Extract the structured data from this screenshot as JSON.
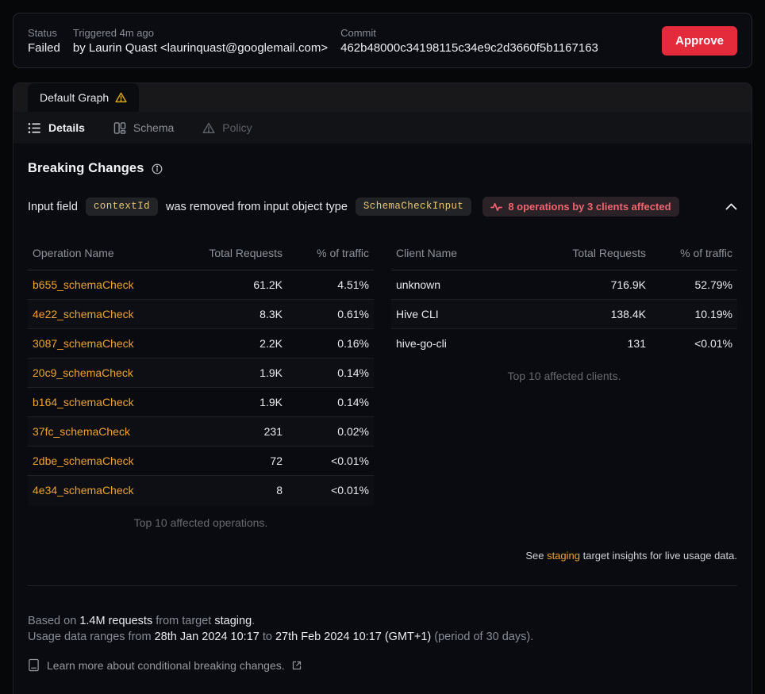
{
  "colors": {
    "accent_orange": "#efa32e",
    "code_yellow": "#e9c874",
    "badge_red": "#f2646f",
    "approve_red": "#e42b3c",
    "warning_yellow": "#d9a514"
  },
  "header": {
    "status_label": "Status",
    "status_value": "Failed",
    "triggered_label": "Triggered 4m ago",
    "triggered_value": "by Laurin Quast <laurinquast@googlemail.com>",
    "commit_label": "Commit",
    "commit_value": "462b48000c34198115c34e9c2d3660f5b1167163",
    "approve_label": "Approve"
  },
  "graph_tabs": {
    "active_label": "Default Graph"
  },
  "nav_tabs": [
    {
      "label": "Details"
    },
    {
      "label": "Schema"
    },
    {
      "label": "Policy"
    }
  ],
  "breaking": {
    "title": "Breaking Changes",
    "change": {
      "text_before": "Input field",
      "field_code": "contextId",
      "text_middle": "was removed from input object type",
      "type_code": "SchemaCheckInput",
      "badge_label": "8 operations by 3 clients affected"
    }
  },
  "operations_table": {
    "headers": [
      "Operation Name",
      "Total Requests",
      "% of traffic"
    ],
    "rows": [
      {
        "name": "b655_schemaCheck",
        "requests": "61.2K",
        "traffic": "4.51%"
      },
      {
        "name": "4e22_schemaCheck",
        "requests": "8.3K",
        "traffic": "0.61%"
      },
      {
        "name": "3087_schemaCheck",
        "requests": "2.2K",
        "traffic": "0.16%"
      },
      {
        "name": "20c9_schemaCheck",
        "requests": "1.9K",
        "traffic": "0.14%"
      },
      {
        "name": "b164_schemaCheck",
        "requests": "1.9K",
        "traffic": "0.14%"
      },
      {
        "name": "37fc_schemaCheck",
        "requests": "231",
        "traffic": "0.02%"
      },
      {
        "name": "2dbe_schemaCheck",
        "requests": "72",
        "traffic": "<0.01%"
      },
      {
        "name": "4e34_schemaCheck",
        "requests": "8",
        "traffic": "<0.01%"
      }
    ],
    "footnote": "Top 10 affected operations."
  },
  "clients_table": {
    "headers": [
      "Client Name",
      "Total Requests",
      "% of traffic"
    ],
    "rows": [
      {
        "name": "unknown",
        "requests": "716.9K",
        "traffic": "52.79%"
      },
      {
        "name": "Hive CLI",
        "requests": "138.4K",
        "traffic": "10.19%"
      },
      {
        "name": "hive-go-cli",
        "requests": "131",
        "traffic": "<0.01%"
      }
    ],
    "footnote": "Top 10 affected clients."
  },
  "insights_note": {
    "segments": [
      {
        "t": "See ",
        "c": "note"
      },
      {
        "t": "staging",
        "c": "link"
      },
      {
        "t": " target insights for live usage data.",
        "c": "note"
      }
    ]
  },
  "footer": {
    "line1": [
      {
        "t": "Based on ",
        "c": "dim"
      },
      {
        "t": "1.4M requests",
        "c": "bright"
      },
      {
        "t": " from target ",
        "c": "dim"
      },
      {
        "t": "staging",
        "c": "bright"
      },
      {
        "t": ".",
        "c": "dim"
      }
    ],
    "line2": [
      {
        "t": "Usage data ranges from ",
        "c": "dim"
      },
      {
        "t": "28th Jan 2024 10:17",
        "c": "bright"
      },
      {
        "t": " to ",
        "c": "dim"
      },
      {
        "t": "27th Feb 2024 10:17 (GMT+1)",
        "c": "bright"
      },
      {
        "t": " (period of 30 days).",
        "c": "dim"
      }
    ],
    "learn_more": "Learn more about conditional breaking changes."
  }
}
